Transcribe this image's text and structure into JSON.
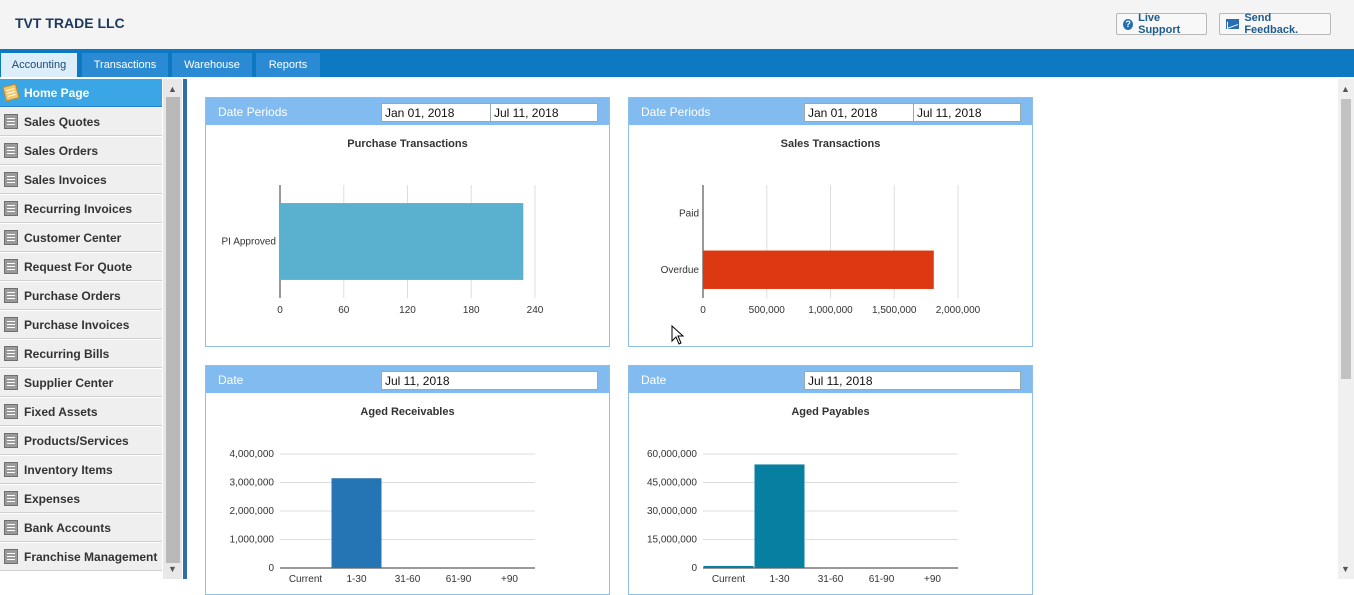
{
  "app": {
    "company": "TVT TRADE LLC"
  },
  "header": {
    "live_support": "Live Support",
    "send_feedback": "Send Feedback."
  },
  "tabs": [
    "Accounting",
    "Transactions",
    "Warehouse",
    "Reports"
  ],
  "sidebar": {
    "items": [
      {
        "label": "Home Page",
        "icon": "home-icon"
      },
      {
        "label": "Sales Quotes",
        "icon": "document-icon"
      },
      {
        "label": "Sales Orders",
        "icon": "document-icon"
      },
      {
        "label": "Sales Invoices",
        "icon": "document-icon"
      },
      {
        "label": "Recurring Invoices",
        "icon": "document-icon"
      },
      {
        "label": "Customer Center",
        "icon": "customer-icon"
      },
      {
        "label": "Request For Quote",
        "icon": "truck-icon"
      },
      {
        "label": "Purchase Orders",
        "icon": "truck-icon"
      },
      {
        "label": "Purchase Invoices",
        "icon": "truck-icon"
      },
      {
        "label": "Recurring Bills",
        "icon": "truck-icon"
      },
      {
        "label": "Supplier Center",
        "icon": "supplier-icon"
      },
      {
        "label": "Fixed Assets",
        "icon": "asset-icon"
      },
      {
        "label": "Products/Services",
        "icon": "truck-icon"
      },
      {
        "label": "Inventory Items",
        "icon": "truck-icon"
      },
      {
        "label": "Expenses",
        "icon": "calculator-icon"
      },
      {
        "label": "Bank Accounts",
        "icon": "bank-icon"
      },
      {
        "label": "Franchise Management",
        "icon": "document-icon"
      }
    ]
  },
  "panels": {
    "purchase": {
      "label": "Date Periods",
      "from": "Jan 01, 2018",
      "to": "Jul 11, 2018",
      "title": "Purchase Transactions"
    },
    "sales": {
      "label": "Date Periods",
      "from": "Jan 01, 2018",
      "to": "Jul 11, 2018",
      "title": "Sales Transactions"
    },
    "receivables": {
      "label": "Date",
      "date": "Jul 11, 2018",
      "title": "Aged Receivables"
    },
    "payables": {
      "label": "Date",
      "date": "Jul 11, 2018",
      "title": "Aged Payables"
    }
  },
  "chart_data": [
    {
      "type": "bar",
      "orientation": "horizontal",
      "title": "Purchase Transactions",
      "categories": [
        "PI Approved"
      ],
      "values": [
        229
      ],
      "xlim": [
        0,
        240
      ],
      "ticks": [
        "0",
        "60",
        "120",
        "180",
        "240"
      ],
      "color": "#5ab0cf"
    },
    {
      "type": "bar",
      "orientation": "horizontal",
      "title": "Sales Transactions",
      "categories": [
        "Paid",
        "Overdue"
      ],
      "values": [
        0,
        1810000
      ],
      "xlim": [
        0,
        2000000
      ],
      "ticks": [
        "0",
        "500,000",
        "1,000,000",
        "1,500,000",
        "2,000,000"
      ],
      "color": "#dc3912"
    },
    {
      "type": "bar",
      "title": "Aged Receivables",
      "categories": [
        "Current",
        "1-30",
        "31-60",
        "61-90",
        "+90"
      ],
      "values": [
        0,
        3150000,
        0,
        0,
        0
      ],
      "ylim": [
        0,
        4000000
      ],
      "ticks": [
        "0",
        "1,000,000",
        "2,000,000",
        "3,000,000",
        "4,000,000"
      ],
      "color": "#2574b3"
    },
    {
      "type": "bar",
      "title": "Aged Payables",
      "categories": [
        "Current",
        "1-30",
        "31-60",
        "61-90",
        "+90"
      ],
      "values": [
        1100000,
        54500000,
        0,
        0,
        0
      ],
      "ylim": [
        0,
        60000000
      ],
      "ticks": [
        "0",
        "15,000,000",
        "30,000,000",
        "45,000,000",
        "60,000,000"
      ],
      "color": "#077fa0"
    }
  ]
}
